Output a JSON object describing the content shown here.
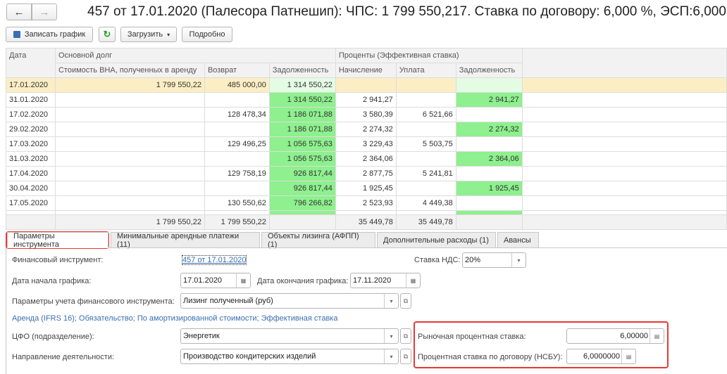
{
  "nav": {
    "back": "←",
    "forward": "→"
  },
  "title": "457 от 17.01.2020 (Палесора Патнешип): ЧПС: 1 799 550,217. Ставка по договору: 6,000 %, ЭСП:6,000",
  "toolbar": {
    "save": "Записать график",
    "refresh": "↻",
    "load": "Загрузить",
    "load_arrow": "▾",
    "details": "Подробно"
  },
  "table": {
    "headers": {
      "date": "Дата",
      "principal": "Основной долг",
      "interest": "Проценты (Эффективная ставка)",
      "cols": [
        "Стоимость ВНА, полученных в аренду",
        "Возврат",
        "Задолженность",
        "Начисление",
        "Уплата",
        "Задолженность"
      ]
    },
    "rows": [
      [
        "17.01.2020",
        "1 799 550,22",
        "485 000,00",
        "1 314 550,22",
        "",
        "",
        ""
      ],
      [
        "31.01.2020",
        "",
        "",
        "1 314 550,22",
        "2 941,27",
        "",
        "2 941,27"
      ],
      [
        "17.02.2020",
        "",
        "128 478,34",
        "1 186 071,88",
        "3 580,39",
        "6 521,66",
        ""
      ],
      [
        "29.02.2020",
        "",
        "",
        "1 186 071,88",
        "2 274,32",
        "",
        "2 274,32"
      ],
      [
        "17.03.2020",
        "",
        "129 496,25",
        "1 056 575,63",
        "3 229,43",
        "5 503,75",
        ""
      ],
      [
        "31.03.2020",
        "",
        "",
        "1 056 575,63",
        "2 364,06",
        "",
        "2 364,06"
      ],
      [
        "17.04.2020",
        "",
        "129 758,19",
        "926 817,44",
        "2 877,75",
        "5 241,81",
        ""
      ],
      [
        "30.04.2020",
        "",
        "",
        "926 817,44",
        "1 925,45",
        "",
        "1 925,45"
      ],
      [
        "17.05.2020",
        "",
        "130 550,62",
        "796 266,82",
        "2 523,93",
        "4 449,38",
        ""
      ]
    ],
    "totals": [
      "",
      "1 799 550,22",
      "1 799 550,22",
      "",
      "35 449,78",
      "35 449,78",
      ""
    ]
  },
  "tabs": [
    "Параметры инструмента",
    "Минимальные арендные платежи (11)",
    "Объекты лизинга (АФПП) (1)",
    "Дополнительные расходы (1)",
    "Авансы"
  ],
  "form": {
    "fin_label": "Финансовый инструмент:",
    "fin_value": "457 от 17.01.2020",
    "vat_label": "Ставка НДС:",
    "vat_value": "20%",
    "start_label": "Дата начала графика:",
    "start_value": "17.01.2020",
    "end_label": "Дата окончания графика:",
    "end_value": "17.11.2020",
    "params_label": "Параметры учета финансового инструмента:",
    "params_value": "Лизинг полученный (руб)",
    "params_desc": "Аренда (IFRS 16); Обязательство; По амортизированной стоимости; Эффективная ставка",
    "cfo_label": "ЦФО (подразделение):",
    "cfo_value": "Энергетик",
    "dir_label": "Направление деятельности:",
    "dir_value": "Производство кондитерских изделий",
    "market_label": "Рыночная процентная ставка:",
    "market_value": "6,00000",
    "contract_label": "Процентная ставка по договору (НСБУ):",
    "contract_value": "6,0000000"
  },
  "colors": {
    "green": "#8ef08e",
    "selected": "#fbeec4",
    "highlight": "#e53935",
    "link": "#3a6fb0"
  }
}
